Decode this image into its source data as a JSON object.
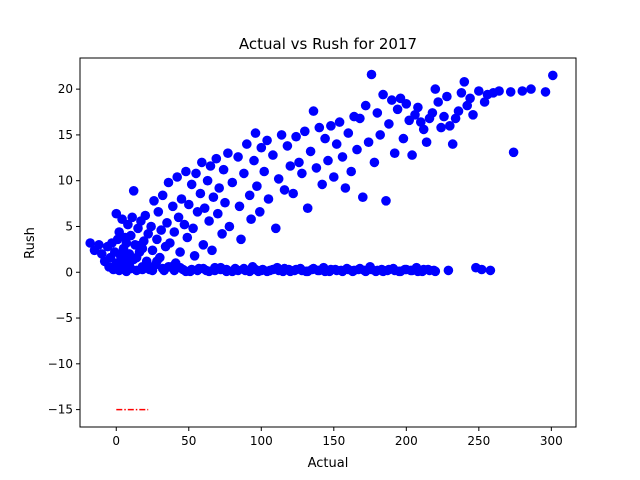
{
  "chart_data": {
    "type": "scatter",
    "title": "Actual vs Rush for 2017",
    "xlabel": "Actual",
    "ylabel": "Rush",
    "xlim": [
      -25,
      317
    ],
    "ylim": [
      -16.9,
      23.4
    ],
    "xticks": [
      0,
      50,
      100,
      150,
      200,
      250,
      300
    ],
    "xtick_labels": [
      "0",
      "50",
      "100",
      "150",
      "200",
      "250",
      "300"
    ],
    "yticks": [
      -15,
      -10,
      -5,
      0,
      5,
      10,
      15,
      20
    ],
    "ytick_labels": [
      "−15",
      "−10",
      "−5",
      "0",
      "5",
      "10",
      "15",
      "20"
    ],
    "grid": false,
    "point_color": "#0000ff",
    "line_color": "#ff0000",
    "series": [
      {
        "kind": "scatter",
        "points": [
          [
            -18,
            3.2
          ],
          [
            -15,
            2.4
          ],
          [
            -12,
            3.0
          ],
          [
            -10,
            2.0
          ],
          [
            -8,
            1.2
          ],
          [
            -6,
            2.8
          ],
          [
            -5,
            0.6
          ],
          [
            -4,
            1.6
          ],
          [
            -3,
            3.2
          ],
          [
            -2,
            0.3
          ],
          [
            -1,
            2.2
          ],
          [
            0,
            1.0
          ],
          [
            0,
            6.4
          ],
          [
            1,
            3.6
          ],
          [
            2,
            0.2
          ],
          [
            2,
            4.4
          ],
          [
            3,
            1.8
          ],
          [
            4,
            5.8
          ],
          [
            5,
            0.5
          ],
          [
            5,
            2.6
          ],
          [
            6,
            3.8
          ],
          [
            7,
            0.1
          ],
          [
            8,
            5.2
          ],
          [
            9,
            2.0
          ],
          [
            10,
            4.0
          ],
          [
            10,
            0.4
          ],
          [
            11,
            6.0
          ],
          [
            12,
            1.4
          ],
          [
            12,
            8.9
          ],
          [
            13,
            3.0
          ],
          [
            14,
            0.2
          ],
          [
            15,
            4.8
          ],
          [
            16,
            2.2
          ],
          [
            17,
            5.6
          ],
          [
            18,
            0.6
          ],
          [
            19,
            3.4
          ],
          [
            20,
            6.2
          ],
          [
            21,
            1.2
          ],
          [
            22,
            4.2
          ],
          [
            23,
            0.3
          ],
          [
            24,
            5.0
          ],
          [
            25,
            2.4
          ],
          [
            26,
            7.8
          ],
          [
            27,
            0.8
          ],
          [
            28,
            3.6
          ],
          [
            29,
            6.6
          ],
          [
            30,
            1.6
          ],
          [
            31,
            4.6
          ],
          [
            32,
            8.4
          ],
          [
            33,
            0.2
          ],
          [
            34,
            2.8
          ],
          [
            35,
            5.4
          ],
          [
            36,
            9.8
          ],
          [
            37,
            3.2
          ],
          [
            38,
            0.6
          ],
          [
            39,
            7.2
          ],
          [
            40,
            4.4
          ],
          [
            41,
            1.0
          ],
          [
            42,
            10.4
          ],
          [
            43,
            6.0
          ],
          [
            44,
            2.2
          ],
          [
            45,
            8.0
          ],
          [
            46,
            0.3
          ],
          [
            47,
            5.2
          ],
          [
            48,
            11.0
          ],
          [
            49,
            3.8
          ],
          [
            50,
            7.4
          ],
          [
            51,
            0.1
          ],
          [
            52,
            9.6
          ],
          [
            53,
            4.8
          ],
          [
            54,
            1.8
          ],
          [
            55,
            10.8
          ],
          [
            56,
            6.6
          ],
          [
            57,
            0.4
          ],
          [
            58,
            8.6
          ],
          [
            59,
            12.0
          ],
          [
            60,
            3.0
          ],
          [
            61,
            7.0
          ],
          [
            62,
            0.2
          ],
          [
            63,
            10.0
          ],
          [
            64,
            5.6
          ],
          [
            65,
            11.6
          ],
          [
            66,
            2.4
          ],
          [
            67,
            8.2
          ],
          [
            68,
            0.5
          ],
          [
            69,
            12.4
          ],
          [
            70,
            6.4
          ],
          [
            71,
            9.2
          ],
          [
            72,
            0.3
          ],
          [
            73,
            4.2
          ],
          [
            74,
            11.2
          ],
          [
            75,
            7.6
          ],
          [
            76,
            0.1
          ],
          [
            77,
            13.0
          ],
          [
            78,
            5.0
          ],
          [
            80,
            9.8
          ],
          [
            82,
            0.4
          ],
          [
            84,
            12.6
          ],
          [
            85,
            7.2
          ],
          [
            86,
            3.6
          ],
          [
            88,
            10.8
          ],
          [
            89,
            0.2
          ],
          [
            90,
            14.0
          ],
          [
            92,
            8.4
          ],
          [
            93,
            5.8
          ],
          [
            94,
            0.6
          ],
          [
            95,
            12.2
          ],
          [
            96,
            15.2
          ],
          [
            97,
            9.4
          ],
          [
            98,
            0.1
          ],
          [
            99,
            6.6
          ],
          [
            100,
            13.6
          ],
          [
            101,
            0.3
          ],
          [
            102,
            11.0
          ],
          [
            104,
            14.4
          ],
          [
            105,
            8.0
          ],
          [
            106,
            0.2
          ],
          [
            108,
            12.8
          ],
          [
            110,
            4.8
          ],
          [
            111,
            0.5
          ],
          [
            112,
            10.2
          ],
          [
            114,
            15.0
          ],
          [
            115,
            0.1
          ],
          [
            116,
            9.0
          ],
          [
            118,
            13.8
          ],
          [
            119,
            0.3
          ],
          [
            120,
            11.6
          ],
          [
            122,
            8.6
          ],
          [
            123,
            0.2
          ],
          [
            124,
            14.8
          ],
          [
            126,
            12.0
          ],
          [
            127,
            0.4
          ],
          [
            128,
            10.8
          ],
          [
            130,
            15.4
          ],
          [
            131,
            0.1
          ],
          [
            132,
            7.0
          ],
          [
            134,
            13.2
          ],
          [
            135,
            0.3
          ],
          [
            136,
            17.6
          ],
          [
            138,
            11.4
          ],
          [
            139,
            0.2
          ],
          [
            140,
            15.8
          ],
          [
            142,
            9.6
          ],
          [
            143,
            0.5
          ],
          [
            144,
            14.6
          ],
          [
            146,
            12.2
          ],
          [
            147,
            0.1
          ],
          [
            148,
            16.0
          ],
          [
            150,
            10.4
          ],
          [
            151,
            0.3
          ],
          [
            152,
            14.0
          ],
          [
            154,
            16.4
          ],
          [
            155,
            0.2
          ],
          [
            156,
            12.6
          ],
          [
            158,
            9.2
          ],
          [
            159,
            0.4
          ],
          [
            160,
            15.2
          ],
          [
            162,
            11.0
          ],
          [
            163,
            0.1
          ],
          [
            164,
            17.0
          ],
          [
            166,
            13.4
          ],
          [
            167,
            0.3
          ],
          [
            168,
            16.8
          ],
          [
            170,
            8.2
          ],
          [
            171,
            0.2
          ],
          [
            172,
            18.2
          ],
          [
            174,
            14.2
          ],
          [
            175,
            0.6
          ],
          [
            176,
            21.6
          ],
          [
            178,
            12.0
          ],
          [
            179,
            0.1
          ],
          [
            180,
            17.4
          ],
          [
            182,
            15.0
          ],
          [
            183,
            0.3
          ],
          [
            184,
            19.4
          ],
          [
            186,
            7.8
          ],
          [
            187,
            0.2
          ],
          [
            188,
            16.2
          ],
          [
            190,
            18.8
          ],
          [
            191,
            0.4
          ],
          [
            192,
            13.0
          ],
          [
            194,
            17.8
          ],
          [
            195,
            0.1
          ],
          [
            196,
            19.0
          ],
          [
            198,
            14.6
          ],
          [
            199,
            0.3
          ],
          [
            200,
            18.4
          ],
          [
            202,
            16.6
          ],
          [
            203,
            0.2
          ],
          [
            204,
            12.8
          ],
          [
            206,
            17.2
          ],
          [
            207,
            0.5
          ],
          [
            208,
            18.0
          ],
          [
            210,
            16.4
          ],
          [
            211,
            0.1
          ],
          [
            212,
            15.6
          ],
          [
            214,
            14.2
          ],
          [
            215,
            0.3
          ],
          [
            216,
            16.8
          ],
          [
            218,
            17.4
          ],
          [
            219,
            0.2
          ],
          [
            220,
            20.0
          ],
          [
            222,
            18.6
          ],
          [
            224,
            15.8
          ],
          [
            226,
            17.0
          ],
          [
            228,
            19.2
          ],
          [
            229,
            0.2
          ],
          [
            230,
            16.0
          ],
          [
            232,
            14.0
          ],
          [
            234,
            16.8
          ],
          [
            236,
            17.6
          ],
          [
            238,
            19.6
          ],
          [
            240,
            20.8
          ],
          [
            242,
            18.2
          ],
          [
            244,
            19.0
          ],
          [
            246,
            17.2
          ],
          [
            248,
            0.5
          ],
          [
            250,
            19.8
          ],
          [
            252,
            0.3
          ],
          [
            254,
            18.6
          ],
          [
            256,
            19.4
          ],
          [
            258,
            0.2
          ],
          [
            260,
            19.6
          ],
          [
            264,
            19.8
          ],
          [
            272,
            19.7
          ],
          [
            274,
            13.1
          ],
          [
            280,
            19.8
          ],
          [
            286,
            20.0
          ],
          [
            296,
            19.7
          ],
          [
            301,
            21.5
          ],
          [
            3,
            0.8
          ],
          [
            6,
            1.4
          ],
          [
            9,
            0.9
          ],
          [
            14,
            1.6
          ],
          [
            18,
            2.6
          ],
          [
            21,
            0.7
          ],
          [
            25,
            0.2
          ],
          [
            28,
            1.2
          ],
          [
            32,
            0.4
          ],
          [
            36,
            0.6
          ],
          [
            40,
            0.2
          ],
          [
            44,
            0.5
          ],
          [
            48,
            0.1
          ],
          [
            52,
            0.3
          ],
          [
            56,
            0.2
          ],
          [
            60,
            0.4
          ],
          [
            64,
            0.1
          ],
          [
            68,
            0.2
          ],
          [
            72,
            0.5
          ],
          [
            76,
            0.3
          ],
          [
            80,
            0.1
          ],
          [
            84,
            0.2
          ],
          [
            88,
            0.4
          ],
          [
            92,
            0.1
          ],
          [
            96,
            0.3
          ],
          [
            100,
            0.2
          ],
          [
            104,
            0.1
          ],
          [
            108,
            0.3
          ],
          [
            112,
            0.2
          ],
          [
            116,
            0.4
          ],
          [
            120,
            0.1
          ],
          [
            124,
            0.3
          ],
          [
            128,
            0.2
          ],
          [
            132,
            0.1
          ],
          [
            136,
            0.4
          ],
          [
            140,
            0.2
          ],
          [
            144,
            0.1
          ],
          [
            148,
            0.3
          ],
          [
            152,
            0.2
          ],
          [
            156,
            0.1
          ],
          [
            160,
            0.3
          ],
          [
            164,
            0.2
          ],
          [
            168,
            0.4
          ],
          [
            172,
            0.1
          ],
          [
            176,
            0.3
          ],
          [
            180,
            0.2
          ],
          [
            184,
            0.1
          ],
          [
            188,
            0.3
          ],
          [
            192,
            0.2
          ],
          [
            196,
            0.1
          ],
          [
            200,
            0.3
          ],
          [
            204,
            0.2
          ],
          [
            208,
            0.1
          ],
          [
            212,
            0.3
          ],
          [
            216,
            0.2
          ],
          [
            220,
            0.1
          ],
          [
            18,
            0.3
          ],
          [
            15,
            2.9
          ],
          [
            7,
            3.2
          ],
          [
            4,
            2.1
          ]
        ]
      },
      {
        "kind": "line",
        "style": "dashdot",
        "points": [
          [
            0,
            -15
          ],
          [
            22,
            -15
          ]
        ]
      }
    ]
  }
}
